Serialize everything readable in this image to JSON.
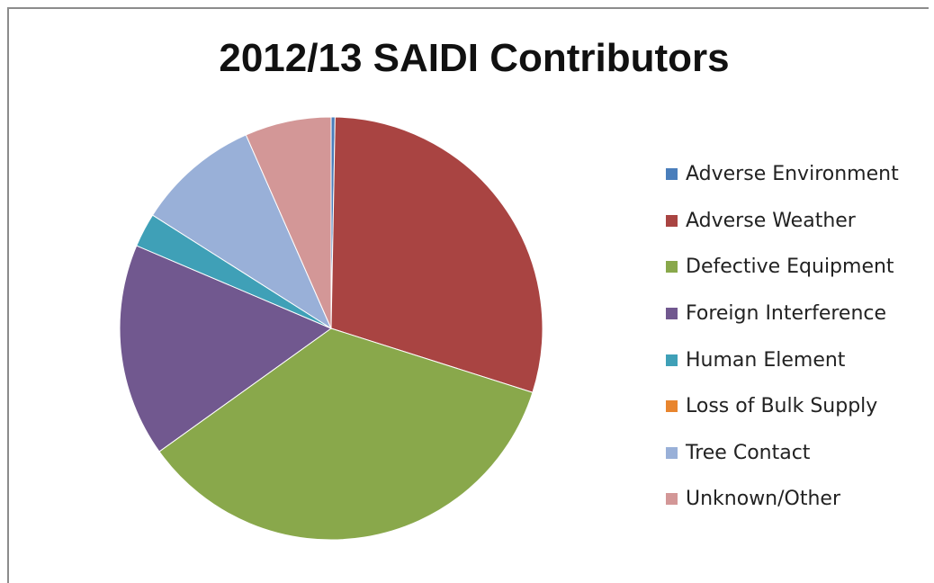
{
  "chart_data": {
    "type": "pie",
    "title": "2012/13 SAIDI Contributors",
    "legend_position": "right",
    "categories": [
      "Adverse Environment",
      "Adverse Weather",
      "Defective Equipment",
      "Foreign Interference",
      "Human Element",
      "Loss of Bulk Supply",
      "Tree Contact",
      "Unknown/Other"
    ],
    "values": [
      0.3,
      29.6,
      35.2,
      16.3,
      2.6,
      0.0,
      9.4,
      6.6
    ],
    "colors": [
      "#4a7ebb",
      "#a94442",
      "#89a84b",
      "#71588f",
      "#3fa0b7",
      "#e8852e",
      "#99b0d8",
      "#d39797"
    ],
    "unit": "%"
  }
}
